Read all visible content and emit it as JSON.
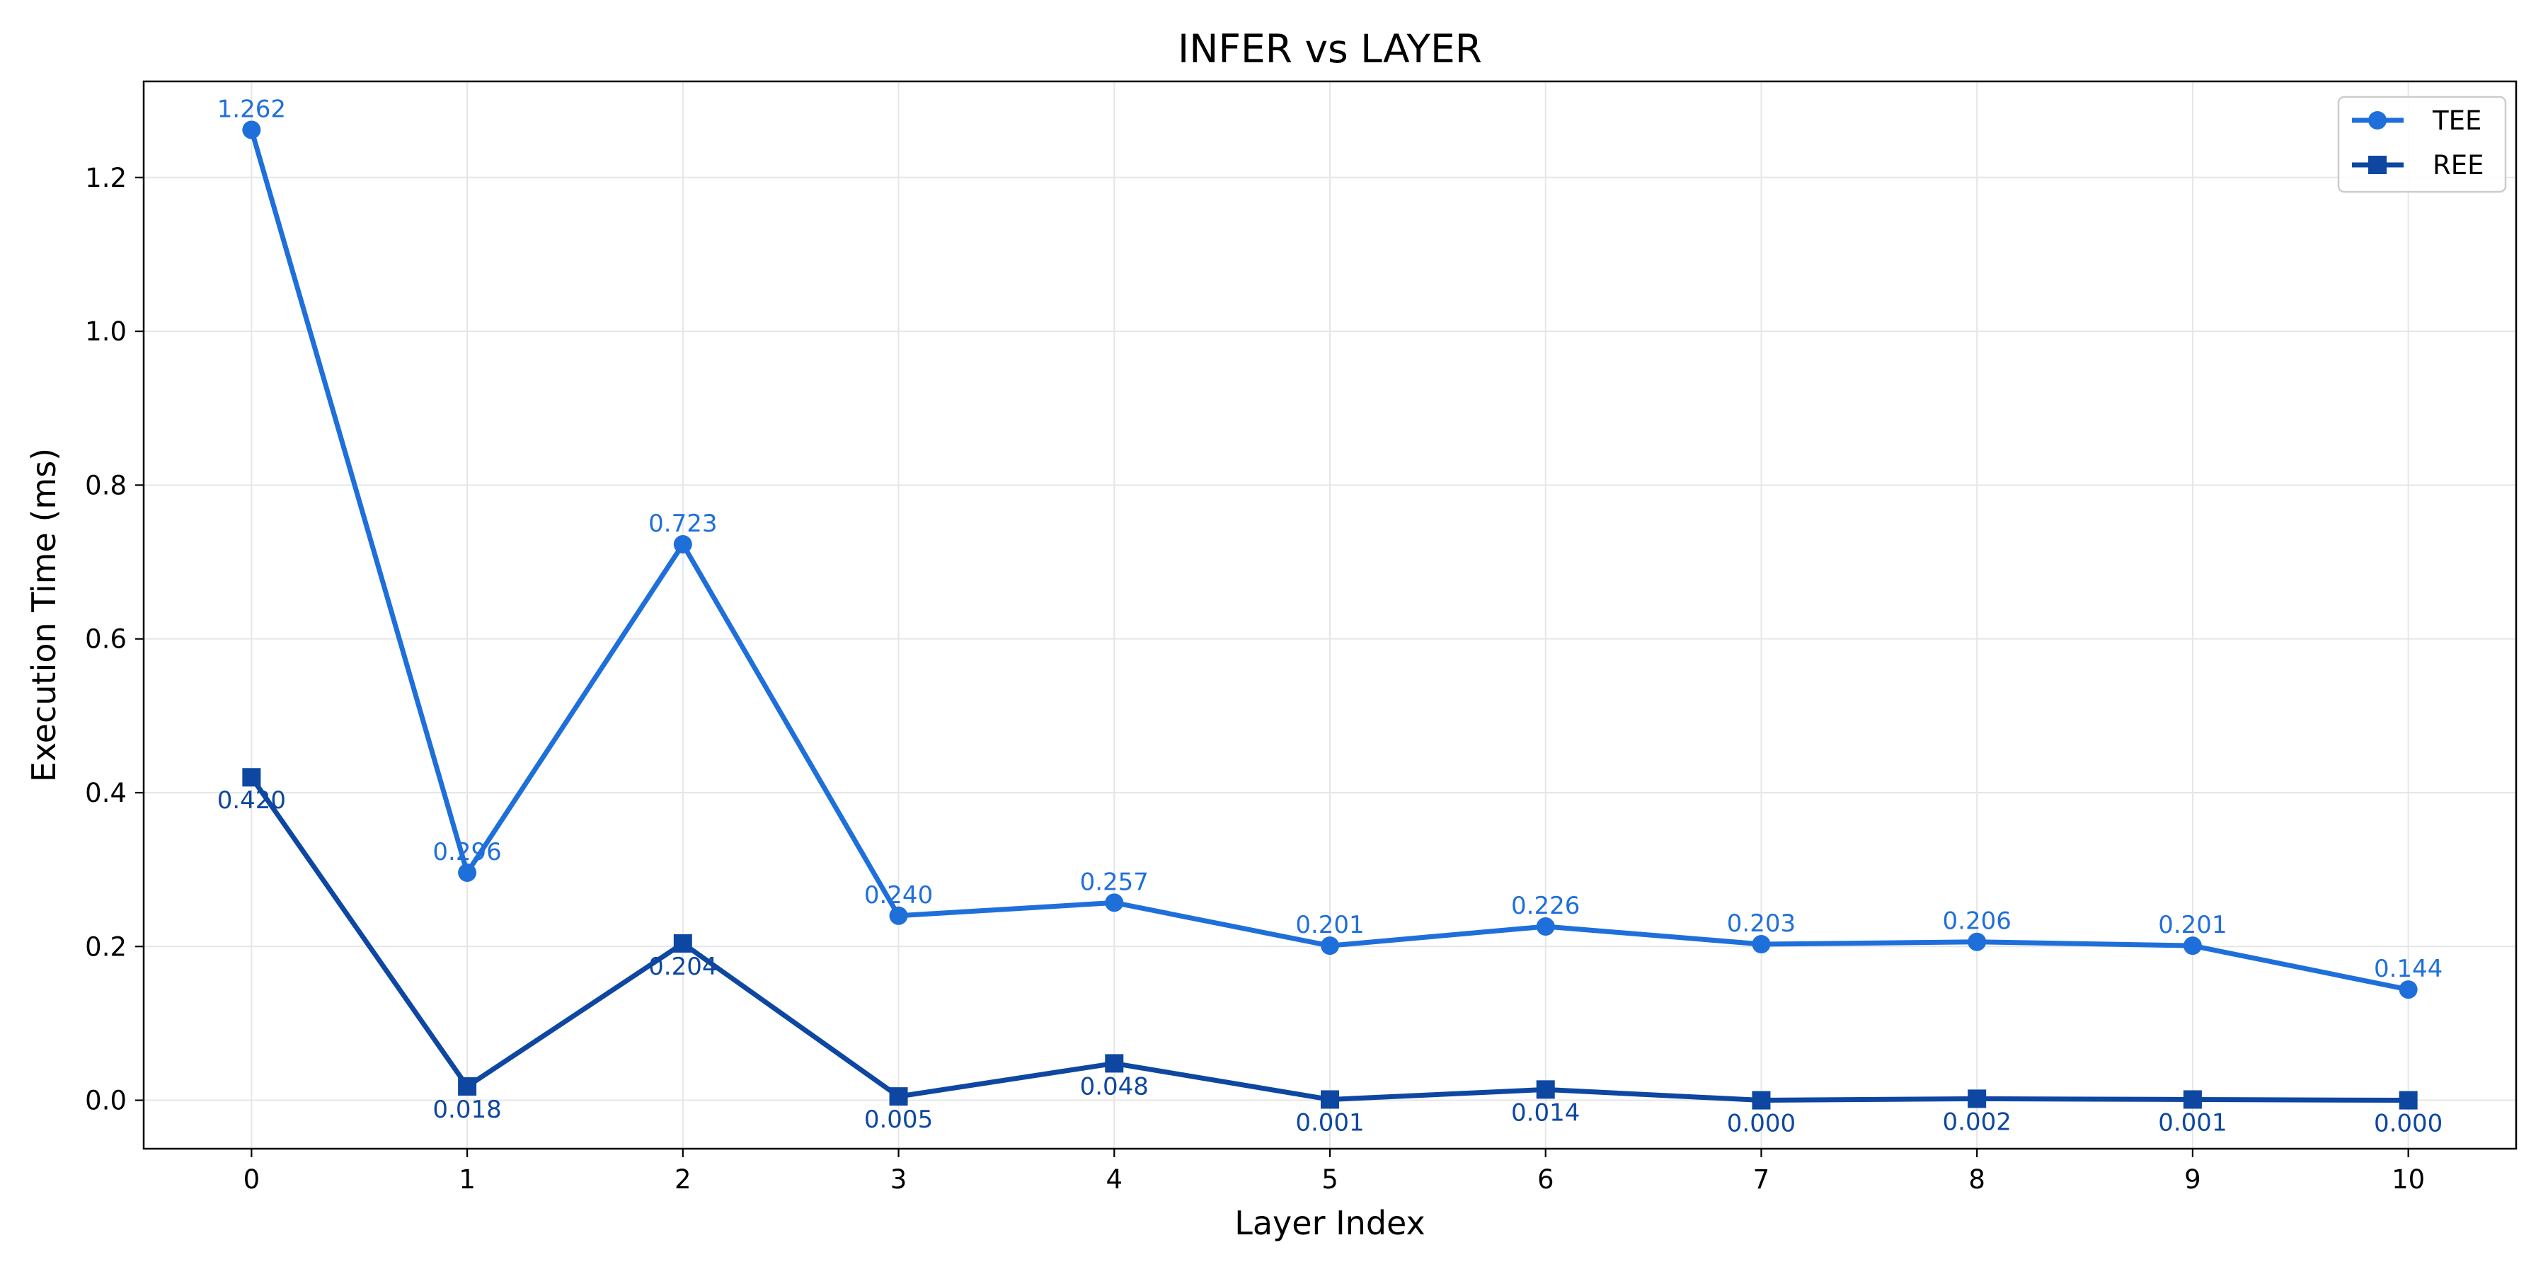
{
  "chart_data": {
    "type": "line",
    "title": "INFER vs LAYER",
    "xlabel": "Layer Index",
    "ylabel": "Execution Time (ms)",
    "x": [
      0,
      1,
      2,
      3,
      4,
      5,
      6,
      7,
      8,
      9,
      10
    ],
    "xlim": [
      -0.5,
      10.5
    ],
    "ylim": [
      -0.063,
      1.325
    ],
    "xticks": [
      "0",
      "1",
      "2",
      "3",
      "4",
      "5",
      "6",
      "7",
      "8",
      "9",
      "10"
    ],
    "yticks": [
      "0.0",
      "0.2",
      "0.4",
      "0.6",
      "0.8",
      "1.0",
      "1.2"
    ],
    "grid": true,
    "legend_position": "top-right",
    "series": [
      {
        "name": "TEE",
        "marker": "circle",
        "color": "#1f6fdb",
        "values": [
          1.262,
          0.296,
          0.723,
          0.24,
          0.257,
          0.201,
          0.226,
          0.203,
          0.206,
          0.201,
          0.144
        ],
        "labels": [
          "1.262",
          "0.296",
          "0.723",
          "0.240",
          "0.257",
          "0.201",
          "0.226",
          "0.203",
          "0.206",
          "0.201",
          "0.144"
        ]
      },
      {
        "name": "REE",
        "marker": "square",
        "color": "#0d47a1",
        "values": [
          0.42,
          0.018,
          0.204,
          0.005,
          0.048,
          0.001,
          0.014,
          0.0,
          0.002,
          0.001,
          0.0
        ],
        "labels": [
          "0.420",
          "0.018",
          "0.204",
          "0.005",
          "0.048",
          "0.001",
          "0.014",
          "0.000",
          "0.002",
          "0.001",
          "0.000"
        ]
      }
    ]
  }
}
